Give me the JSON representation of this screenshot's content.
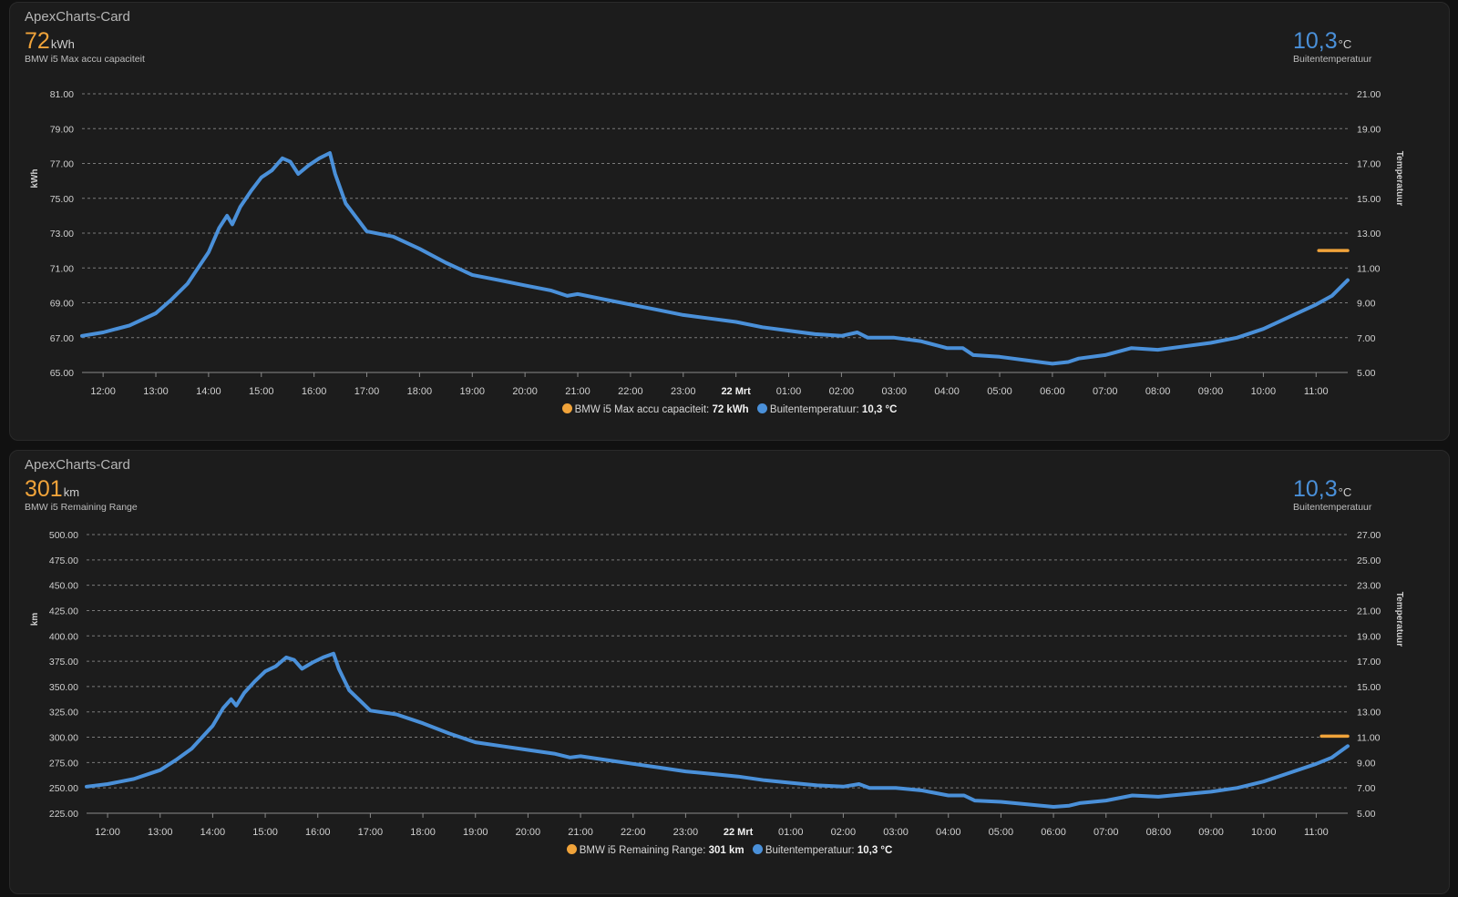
{
  "cards": [
    {
      "title": "ApexCharts-Card",
      "primary": {
        "value": "72",
        "unit": "kWh",
        "name": "BMW i5 Max accu capaciteit",
        "color": "#f0a33a"
      },
      "secondary": {
        "value": "10,3",
        "unit": "°C",
        "name": "Buitentemperatuur",
        "color": "#4a90d9"
      },
      "legend": [
        {
          "label": "BMW i5 Max accu capaciteit:",
          "value": "72 kWh",
          "color": "#f0a33a"
        },
        {
          "label": "Buitentemperatuur:",
          "value": "10,3 °C",
          "color": "#4a90d9"
        }
      ]
    },
    {
      "title": "ApexCharts-Card",
      "primary": {
        "value": "301",
        "unit": "km",
        "name": "BMW i5 Remaining Range",
        "color": "#f0a33a"
      },
      "secondary": {
        "value": "10,3",
        "unit": "°C",
        "name": "Buitentemperatuur",
        "color": "#4a90d9"
      },
      "legend": [
        {
          "label": "BMW i5 Remaining Range:",
          "value": "301 km",
          "color": "#f0a33a"
        },
        {
          "label": "Buitentemperatuur:",
          "value": "10,3 °C",
          "color": "#4a90d9"
        }
      ]
    }
  ],
  "chart_data": [
    {
      "type": "line",
      "title": "ApexCharts-Card",
      "ylabel": "kWh",
      "y2label": "Temperatuur",
      "ylim": [
        65,
        81
      ],
      "y2lim": [
        5,
        21
      ],
      "yticks": [
        "81.00",
        "79.00",
        "77.00",
        "75.00",
        "73.00",
        "71.00",
        "69.00",
        "67.00",
        "65.00"
      ],
      "y2ticks": [
        "21.00",
        "19.00",
        "17.00",
        "15.00",
        "13.00",
        "11.00",
        "9.00",
        "7.00",
        "5.00"
      ],
      "xlim": [
        11.6,
        35.6
      ],
      "xticks": [
        {
          "t": 12,
          "label": "12:00"
        },
        {
          "t": 13,
          "label": "13:00"
        },
        {
          "t": 14,
          "label": "14:00"
        },
        {
          "t": 15,
          "label": "15:00"
        },
        {
          "t": 16,
          "label": "16:00"
        },
        {
          "t": 17,
          "label": "17:00"
        },
        {
          "t": 18,
          "label": "18:00"
        },
        {
          "t": 19,
          "label": "19:00"
        },
        {
          "t": 20,
          "label": "20:00"
        },
        {
          "t": 21,
          "label": "21:00"
        },
        {
          "t": 22,
          "label": "22:00"
        },
        {
          "t": 23,
          "label": "23:00"
        },
        {
          "t": 24,
          "label": "22 Mrt",
          "bold": true
        },
        {
          "t": 25,
          "label": "01:00"
        },
        {
          "t": 26,
          "label": "02:00"
        },
        {
          "t": 27,
          "label": "03:00"
        },
        {
          "t": 28,
          "label": "04:00"
        },
        {
          "t": 29,
          "label": "05:00"
        },
        {
          "t": 30,
          "label": "06:00"
        },
        {
          "t": 31,
          "label": "07:00"
        },
        {
          "t": 32,
          "label": "08:00"
        },
        {
          "t": 33,
          "label": "09:00"
        },
        {
          "t": 34,
          "label": "10:00"
        },
        {
          "t": 35,
          "label": "11:00"
        }
      ],
      "series": [
        {
          "name": "BMW i5 Max accu capaciteit",
          "axis": "left",
          "color": "#f0a33a",
          "x": [
            35.05,
            35.6
          ],
          "y": [
            72,
            72
          ]
        },
        {
          "name": "Buitentemperatuur",
          "axis": "right",
          "color": "#4a90d9",
          "x": [
            11.6,
            12.0,
            12.5,
            13.0,
            13.3,
            13.6,
            13.8,
            14.0,
            14.2,
            14.35,
            14.45,
            14.6,
            14.8,
            15.0,
            15.2,
            15.4,
            15.55,
            15.7,
            15.9,
            16.1,
            16.3,
            16.4,
            16.6,
            16.8,
            17.0,
            17.5,
            18.0,
            18.5,
            19.0,
            19.5,
            20.0,
            20.5,
            20.8,
            21.0,
            21.5,
            22.0,
            22.5,
            23.0,
            23.5,
            24.0,
            24.5,
            25.0,
            25.5,
            26.0,
            26.3,
            26.5,
            27.0,
            27.5,
            28.0,
            28.3,
            28.5,
            29.0,
            29.5,
            30.0,
            30.3,
            30.5,
            31.0,
            31.5,
            32.0,
            32.5,
            33.0,
            33.5,
            34.0,
            34.5,
            35.0,
            35.3,
            35.6
          ],
          "y": [
            7.1,
            7.3,
            7.7,
            8.4,
            9.2,
            10.1,
            11.0,
            11.9,
            13.3,
            14.0,
            13.5,
            14.5,
            15.4,
            16.2,
            16.6,
            17.3,
            17.1,
            16.4,
            16.9,
            17.3,
            17.6,
            16.4,
            14.7,
            13.9,
            13.1,
            12.8,
            12.1,
            11.3,
            10.6,
            10.3,
            10.0,
            9.7,
            9.4,
            9.5,
            9.2,
            8.9,
            8.6,
            8.3,
            8.1,
            7.9,
            7.6,
            7.4,
            7.2,
            7.1,
            7.3,
            7.0,
            7.0,
            6.8,
            6.4,
            6.4,
            6.0,
            5.9,
            5.7,
            5.5,
            5.6,
            5.8,
            6.0,
            6.4,
            6.3,
            6.5,
            6.7,
            7.0,
            7.5,
            8.2,
            8.9,
            9.4,
            10.3
          ]
        }
      ]
    },
    {
      "type": "line",
      "title": "ApexCharts-Card",
      "ylabel": "km",
      "y2label": "Temperatuur",
      "ylim": [
        225,
        500
      ],
      "y2lim": [
        5,
        27
      ],
      "yticks": [
        "500.00",
        "475.00",
        "450.00",
        "425.00",
        "400.00",
        "375.00",
        "350.00",
        "325.00",
        "300.00",
        "275.00",
        "250.00",
        "225.00"
      ],
      "y2ticks": [
        "27.00",
        "25.00",
        "23.00",
        "21.00",
        "19.00",
        "17.00",
        "15.00",
        "13.00",
        "11.00",
        "9.00",
        "7.00",
        "5.00"
      ],
      "xlim": [
        11.6,
        35.6
      ],
      "xticks": [
        {
          "t": 12,
          "label": "12:00"
        },
        {
          "t": 13,
          "label": "13:00"
        },
        {
          "t": 14,
          "label": "14:00"
        },
        {
          "t": 15,
          "label": "15:00"
        },
        {
          "t": 16,
          "label": "16:00"
        },
        {
          "t": 17,
          "label": "17:00"
        },
        {
          "t": 18,
          "label": "18:00"
        },
        {
          "t": 19,
          "label": "19:00"
        },
        {
          "t": 20,
          "label": "20:00"
        },
        {
          "t": 21,
          "label": "21:00"
        },
        {
          "t": 22,
          "label": "22:00"
        },
        {
          "t": 23,
          "label": "23:00"
        },
        {
          "t": 24,
          "label": "22 Mrt",
          "bold": true
        },
        {
          "t": 25,
          "label": "01:00"
        },
        {
          "t": 26,
          "label": "02:00"
        },
        {
          "t": 27,
          "label": "03:00"
        },
        {
          "t": 28,
          "label": "04:00"
        },
        {
          "t": 29,
          "label": "05:00"
        },
        {
          "t": 30,
          "label": "06:00"
        },
        {
          "t": 31,
          "label": "07:00"
        },
        {
          "t": 32,
          "label": "08:00"
        },
        {
          "t": 33,
          "label": "09:00"
        },
        {
          "t": 34,
          "label": "10:00"
        },
        {
          "t": 35,
          "label": "11:00"
        }
      ],
      "series": [
        {
          "name": "BMW i5 Remaining Range",
          "axis": "left",
          "color": "#f0a33a",
          "x": [
            35.1,
            35.6
          ],
          "y": [
            301,
            301
          ]
        },
        {
          "name": "Buitentemperatuur",
          "axis": "right",
          "color": "#4a90d9",
          "x": [
            11.6,
            12.0,
            12.5,
            13.0,
            13.3,
            13.6,
            13.8,
            14.0,
            14.2,
            14.35,
            14.45,
            14.6,
            14.8,
            15.0,
            15.2,
            15.4,
            15.55,
            15.7,
            15.9,
            16.1,
            16.3,
            16.4,
            16.6,
            16.8,
            17.0,
            17.5,
            18.0,
            18.5,
            19.0,
            19.5,
            20.0,
            20.5,
            20.8,
            21.0,
            21.5,
            22.0,
            22.5,
            23.0,
            23.5,
            24.0,
            24.5,
            25.0,
            25.5,
            26.0,
            26.3,
            26.5,
            27.0,
            27.5,
            28.0,
            28.3,
            28.5,
            29.0,
            29.5,
            30.0,
            30.3,
            30.5,
            31.0,
            31.5,
            32.0,
            32.5,
            33.0,
            33.5,
            34.0,
            34.5,
            35.0,
            35.3,
            35.6
          ],
          "y": [
            7.1,
            7.3,
            7.7,
            8.4,
            9.2,
            10.1,
            11.0,
            11.9,
            13.3,
            14.0,
            13.5,
            14.5,
            15.4,
            16.2,
            16.6,
            17.3,
            17.1,
            16.4,
            16.9,
            17.3,
            17.6,
            16.4,
            14.7,
            13.9,
            13.1,
            12.8,
            12.1,
            11.3,
            10.6,
            10.3,
            10.0,
            9.7,
            9.4,
            9.5,
            9.2,
            8.9,
            8.6,
            8.3,
            8.1,
            7.9,
            7.6,
            7.4,
            7.2,
            7.1,
            7.3,
            7.0,
            7.0,
            6.8,
            6.4,
            6.4,
            6.0,
            5.9,
            5.7,
            5.5,
            5.6,
            5.8,
            6.0,
            6.4,
            6.3,
            6.5,
            6.7,
            7.0,
            7.5,
            8.2,
            8.9,
            9.4,
            10.3
          ]
        }
      ]
    }
  ]
}
